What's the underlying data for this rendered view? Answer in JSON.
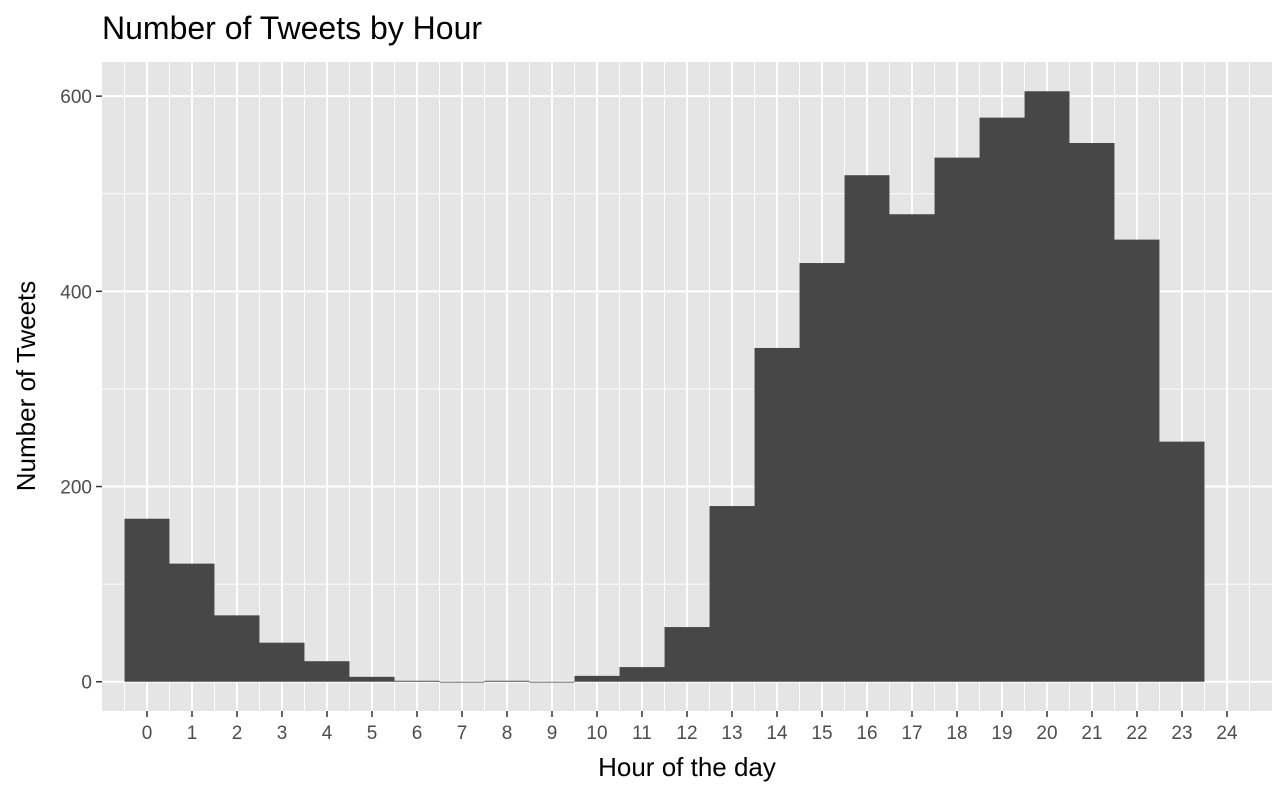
{
  "chart_data": {
    "type": "bar",
    "title": "Number of Tweets by Hour",
    "xlabel": "Hour of the day",
    "ylabel": "Number of Tweets",
    "x_ticks": [
      "0",
      "1",
      "2",
      "3",
      "4",
      "5",
      "6",
      "7",
      "8",
      "9",
      "10",
      "11",
      "12",
      "13",
      "14",
      "15",
      "16",
      "17",
      "18",
      "19",
      "20",
      "21",
      "22",
      "23",
      "24"
    ],
    "y_ticks": [
      0,
      200,
      400,
      600
    ],
    "categories": [
      "0",
      "1",
      "2",
      "3",
      "4",
      "5",
      "6",
      "7",
      "8",
      "9",
      "10",
      "11",
      "12",
      "13",
      "14",
      "15",
      "16",
      "17",
      "18",
      "19",
      "20",
      "21",
      "22",
      "23"
    ],
    "values": [
      167,
      121,
      68,
      40,
      21,
      5,
      1,
      0,
      1,
      0,
      6,
      15,
      56,
      180,
      342,
      429,
      519,
      479,
      537,
      578,
      605,
      552,
      453,
      246
    ],
    "xlim": [
      -1,
      25
    ],
    "ylim": [
      -30,
      635
    ],
    "grid": true,
    "colors": {
      "panel_background": "#e5e5e5",
      "grid_line": "#ffffff",
      "bar_fill": "#474747",
      "tick_text": "#4d4d4d",
      "tick_mark": "#333333"
    }
  }
}
